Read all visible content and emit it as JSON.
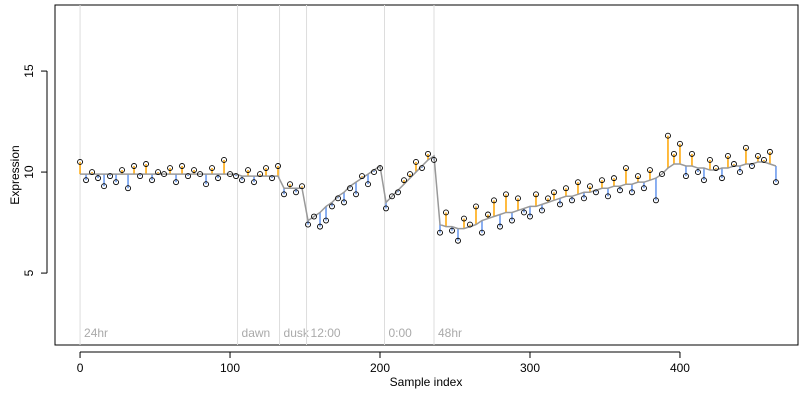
{
  "chart_data": {
    "type": "scatter",
    "x_label": "Sample index",
    "y_label": "Expression",
    "xlim": [
      -16.7,
      478.7
    ],
    "ylim": [
      1.44,
      18.27
    ],
    "xticks": [
      0,
      100,
      200,
      300,
      400
    ],
    "yticks": [
      5,
      10,
      15
    ],
    "point_color": "#000000",
    "fit_color": "#999999",
    "above_color": "#FFA500",
    "below_color": "#6495ED",
    "marker_color": "#dddddd",
    "markers": [
      {
        "x": 0,
        "label": "24hr"
      },
      {
        "x": 105,
        "label": "dawn"
      },
      {
        "x": 133,
        "label": "dusk"
      },
      {
        "x": 151,
        "label": "12:00"
      },
      {
        "x": 203,
        "label": "0:00"
      },
      {
        "x": 236,
        "label": "48hr"
      }
    ],
    "x": [
      0,
      4,
      8,
      12,
      16,
      20,
      24,
      28,
      32,
      36,
      40,
      44,
      48,
      52,
      56,
      60,
      64,
      68,
      72,
      76,
      80,
      84,
      88,
      92,
      96,
      100,
      104,
      108,
      112,
      116,
      120,
      124,
      128,
      132,
      136,
      140,
      144,
      148,
      152,
      156,
      160,
      164,
      168,
      172,
      176,
      180,
      184,
      188,
      192,
      196,
      200,
      204,
      208,
      212,
      216,
      220,
      224,
      228,
      232,
      236,
      240,
      244,
      248,
      252,
      256,
      260,
      264,
      268,
      272,
      276,
      280,
      284,
      288,
      292,
      296,
      300,
      304,
      308,
      312,
      316,
      320,
      324,
      328,
      332,
      336,
      340,
      344,
      348,
      352,
      356,
      360,
      364,
      368,
      372,
      376,
      380,
      384,
      388,
      392,
      396,
      400,
      404,
      408,
      412,
      416,
      420,
      424,
      428,
      432,
      436,
      440,
      444,
      448,
      452,
      456,
      460,
      464
    ],
    "values": [
      10.5,
      9.6,
      10.0,
      9.7,
      9.3,
      9.8,
      9.5,
      10.1,
      9.2,
      10.3,
      9.8,
      10.4,
      9.6,
      10.0,
      9.9,
      10.2,
      9.5,
      10.3,
      9.8,
      10.1,
      9.9,
      9.4,
      10.2,
      9.7,
      10.6,
      9.9,
      9.8,
      9.6,
      10.1,
      9.5,
      9.9,
      10.2,
      9.7,
      10.3,
      8.9,
      9.4,
      9.0,
      9.3,
      7.4,
      7.8,
      7.3,
      7.6,
      8.3,
      8.7,
      8.5,
      9.2,
      8.9,
      9.8,
      9.4,
      10.0,
      10.2,
      8.2,
      8.8,
      9.0,
      9.6,
      9.9,
      10.5,
      10.2,
      10.9,
      10.6,
      7.0,
      8.0,
      7.1,
      6.6,
      7.7,
      7.4,
      8.3,
      7.0,
      7.9,
      8.6,
      7.3,
      8.9,
      7.6,
      8.7,
      8.0,
      7.8,
      8.9,
      8.1,
      8.7,
      9.0,
      8.4,
      9.2,
      8.6,
      9.5,
      8.7,
      9.3,
      9.0,
      9.6,
      8.8,
      9.7,
      9.1,
      10.2,
      9.0,
      9.8,
      9.2,
      10.1,
      8.6,
      9.9,
      11.8,
      10.9,
      11.4,
      9.8,
      10.9,
      10.0,
      9.6,
      10.6,
      10.2,
      9.7,
      10.8,
      10.4,
      10.0,
      11.2,
      10.3,
      10.8,
      10.6,
      11.0,
      9.5
    ],
    "fitted_values": [
      9.9,
      9.9,
      9.9,
      9.9,
      9.9,
      9.9,
      9.9,
      9.9,
      9.9,
      9.9,
      9.9,
      9.9,
      9.9,
      9.9,
      9.9,
      9.9,
      9.9,
      9.9,
      9.9,
      9.9,
      9.9,
      9.9,
      9.9,
      9.9,
      9.9,
      9.9,
      9.9,
      9.8,
      9.8,
      9.8,
      9.8,
      9.8,
      9.8,
      9.8,
      9.2,
      9.2,
      9.2,
      9.2,
      7.6,
      7.8,
      8.0,
      8.3,
      8.5,
      8.8,
      9.0,
      9.3,
      9.5,
      9.7,
      9.9,
      10.1,
      10.3,
      8.5,
      8.8,
      9.1,
      9.4,
      9.7,
      10.0,
      10.3,
      10.6,
      10.8,
      7.4,
      7.3,
      7.3,
      7.2,
      7.2,
      7.3,
      7.4,
      7.6,
      7.7,
      7.8,
      7.9,
      8.0,
      8.0,
      8.1,
      8.2,
      8.3,
      8.3,
      8.4,
      8.5,
      8.6,
      8.7,
      8.8,
      8.8,
      8.9,
      9.0,
      9.0,
      9.1,
      9.2,
      9.2,
      9.3,
      9.3,
      9.4,
      9.4,
      9.5,
      9.5,
      9.6,
      9.7,
      9.9,
      10.2,
      10.4,
      10.4,
      10.3,
      10.3,
      10.2,
      10.2,
      10.1,
      10.1,
      10.2,
      10.2,
      10.3,
      10.3,
      10.4,
      10.4,
      10.5,
      10.5,
      10.4,
      10.3
    ]
  }
}
